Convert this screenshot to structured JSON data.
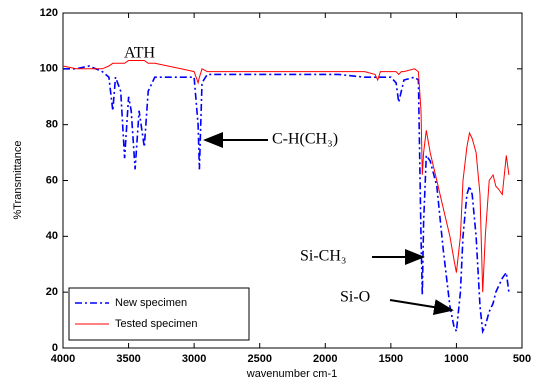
{
  "chart_data": {
    "type": "line",
    "x_label": "wavenumber cm-1",
    "y_label": "%Transmittance",
    "x": [
      4000,
      3900,
      3800,
      3700,
      3650,
      3620,
      3600,
      3560,
      3530,
      3500,
      3480,
      3450,
      3420,
      3380,
      3350,
      3300,
      3200,
      3100,
      3000,
      2970,
      2960,
      2940,
      2900,
      2700,
      2500,
      2300,
      2100,
      1900,
      1700,
      1620,
      1600,
      1580,
      1500,
      1460,
      1440,
      1420,
      1400,
      1320,
      1290,
      1270,
      1260,
      1250,
      1230,
      1200,
      1150,
      1100,
      1050,
      1020,
      1000,
      970,
      950,
      920,
      900,
      880,
      850,
      820,
      800,
      780,
      750,
      720,
      700,
      680,
      650,
      620,
      600
    ],
    "series": [
      {
        "name": "New specimen",
        "color": "#0000ff",
        "style": "dashdot",
        "values": [
          100,
          100,
          101,
          99,
          97,
          85,
          97,
          92,
          68,
          90,
          85,
          64,
          85,
          72,
          92,
          97,
          97,
          97,
          97,
          80,
          64,
          95,
          98,
          98,
          98,
          98,
          98,
          98,
          97,
          97,
          97,
          97,
          97,
          95,
          88,
          92,
          96,
          97,
          96,
          40,
          19,
          45,
          69,
          67,
          58,
          35,
          15,
          8,
          6,
          20,
          40,
          55,
          58,
          55,
          40,
          15,
          6,
          8,
          13,
          16,
          20,
          22,
          25,
          27,
          20
        ]
      },
      {
        "name": "Tested specimen",
        "color": "#ff0000",
        "style": "solid",
        "values": [
          101,
          100,
          100,
          100,
          101,
          102,
          102,
          102,
          102,
          103,
          103,
          103,
          103,
          103,
          102,
          102,
          101,
          100,
          99,
          95,
          97,
          100,
          99,
          99,
          99,
          99,
          99,
          99,
          99,
          98,
          96,
          99,
          99,
          99,
          98,
          99,
          99,
          100,
          99,
          85,
          62,
          70,
          78,
          70,
          60,
          50,
          40,
          32,
          27,
          40,
          60,
          72,
          77,
          75,
          70,
          55,
          20,
          40,
          60,
          62,
          58,
          57,
          55,
          69,
          62
        ]
      }
    ],
    "xlim": [
      4000,
      500
    ],
    "xticks": [
      4000,
      3500,
      3000,
      2500,
      2000,
      1500,
      1000,
      500
    ],
    "ylim": [
      0,
      120
    ],
    "yticks": [
      0,
      20,
      40,
      60,
      80,
      100,
      120
    ],
    "legend": "lower left",
    "annotations": [
      {
        "text": "ATH"
      },
      {
        "text": "C-H(CH₃)"
      },
      {
        "text": "Si-CH₃"
      },
      {
        "text": "Si-O"
      }
    ]
  }
}
